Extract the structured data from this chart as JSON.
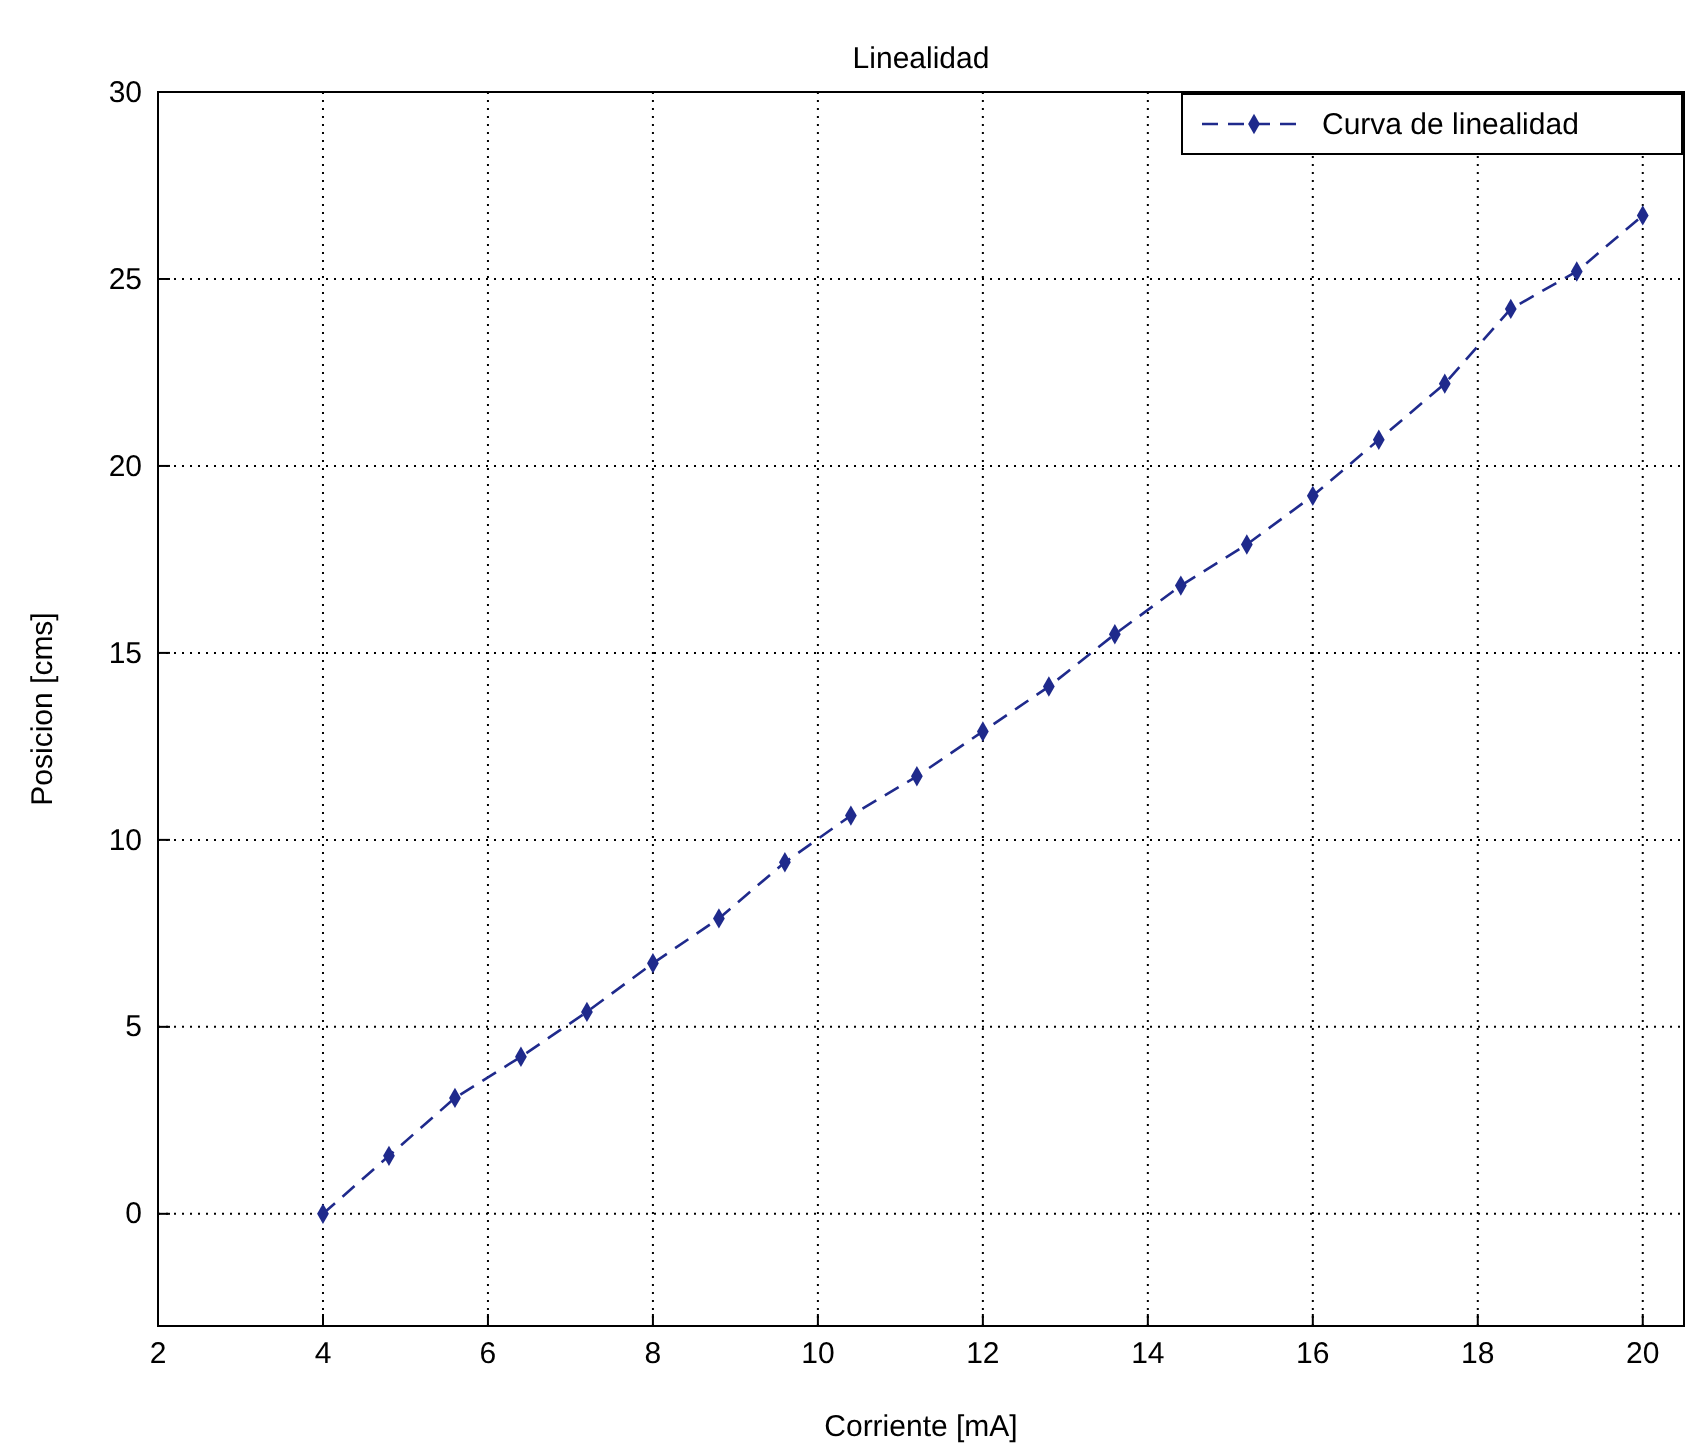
{
  "chart_data": {
    "type": "line",
    "title": "Linealidad",
    "xlabel": "Corriente [mA]",
    "ylabel": "Posicion [cms]",
    "x": [
      4,
      4.8,
      5.6,
      6.4,
      7.2,
      8,
      8.8,
      9.6,
      10.4,
      11.2,
      12,
      12.8,
      13.6,
      14.4,
      15.2,
      16,
      16.8,
      17.6,
      18.4,
      19.2,
      20
    ],
    "series": [
      {
        "name": "Curva de linealidad",
        "color": "#1f2a8c",
        "values": [
          0,
          1.55,
          3.1,
          4.2,
          5.4,
          6.7,
          7.9,
          9.4,
          10.65,
          11.7,
          12.9,
          14.1,
          15.5,
          16.8,
          17.9,
          19.2,
          20.7,
          22.2,
          24.2,
          25.2,
          26.7
        ]
      }
    ],
    "xlim": [
      2,
      20.5
    ],
    "xticks": [
      2,
      4,
      6,
      8,
      10,
      12,
      14,
      16,
      18,
      20
    ],
    "ylim": [
      -3,
      30
    ],
    "yticks": [
      0,
      5,
      10,
      15,
      20,
      25,
      30
    ],
    "grid": true,
    "legend": "top right",
    "marker": "diamond",
    "line_style": "dashed"
  }
}
